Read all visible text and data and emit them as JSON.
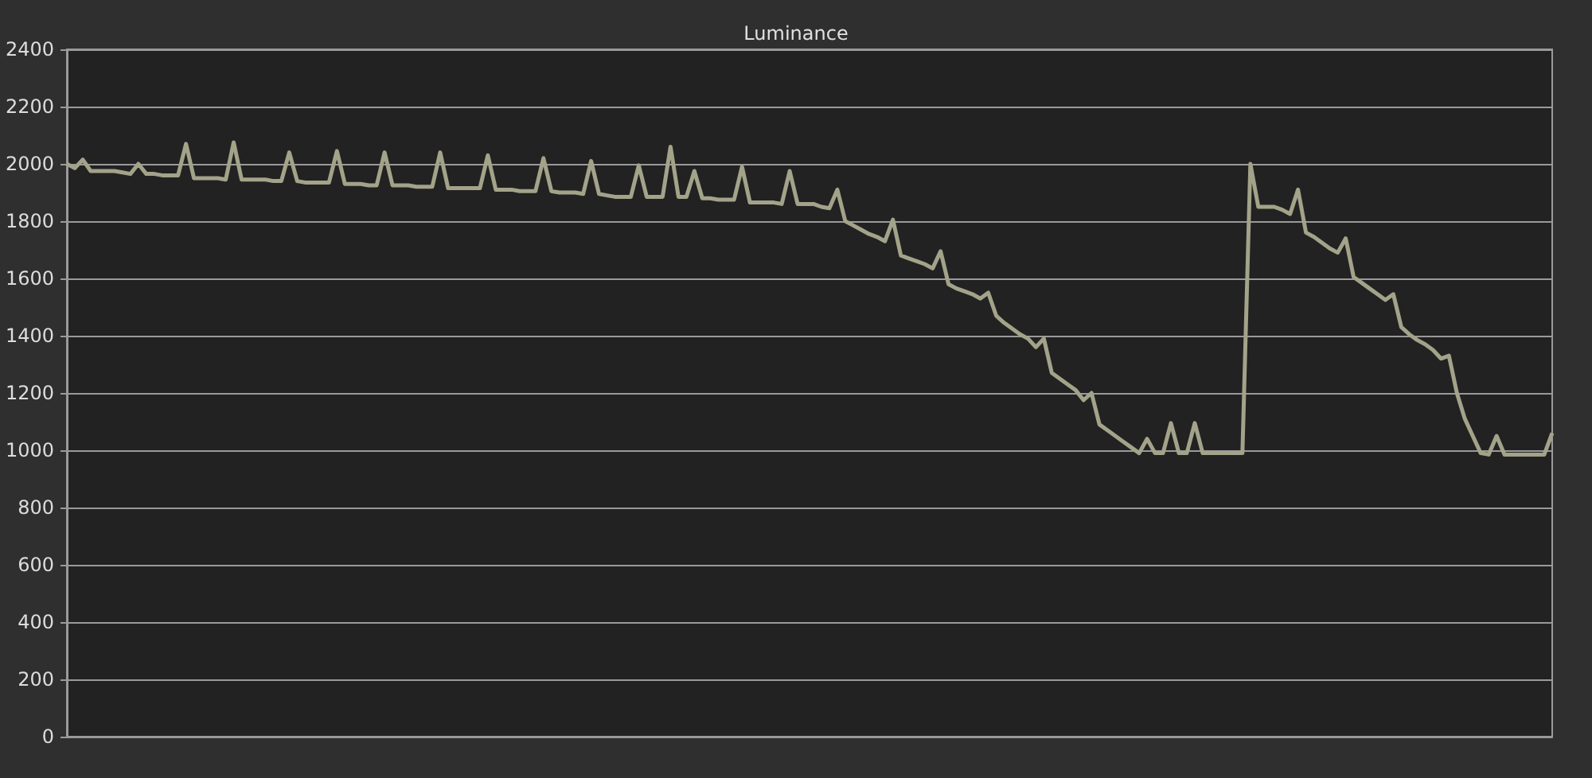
{
  "chart_data": {
    "type": "line",
    "title": "Luminance",
    "categories": [
      null,
      null,
      null,
      null,
      null,
      null,
      null,
      null,
      null,
      null,
      null,
      null,
      null,
      null,
      null,
      null,
      null,
      null,
      null,
      null,
      null,
      null,
      null,
      null,
      null,
      null,
      null,
      null,
      null,
      null,
      null,
      null,
      null,
      null,
      null,
      null,
      null,
      null,
      null,
      null,
      null,
      null,
      null,
      null,
      null,
      null,
      null,
      null,
      null,
      null,
      null,
      null,
      null,
      null,
      null,
      null,
      null,
      null,
      null,
      null,
      null,
      null,
      null,
      null,
      null,
      null,
      null,
      null,
      null,
      null,
      null,
      null,
      null,
      null,
      null,
      null,
      null,
      null,
      null,
      null,
      null,
      null,
      null,
      null,
      null,
      null,
      null,
      null,
      null,
      null,
      null,
      null,
      null,
      null,
      null,
      null,
      null,
      null,
      null,
      null,
      null,
      null,
      null,
      null,
      null,
      null,
      null,
      null,
      null,
      null,
      null,
      null,
      null,
      null,
      null,
      null,
      null,
      null,
      null,
      null,
      null,
      null,
      null,
      null,
      null,
      null,
      null,
      null,
      null,
      null,
      null,
      null,
      null,
      null,
      null,
      null,
      null,
      null,
      null,
      null,
      null,
      null,
      null,
      null,
      null,
      null,
      null,
      null,
      null,
      null,
      null,
      null,
      null,
      null,
      null,
      null,
      null,
      null,
      null,
      null,
      null,
      null,
      null,
      null,
      null,
      null,
      null,
      null,
      null,
      null,
      null,
      null,
      null,
      null,
      null,
      null,
      null,
      null,
      null,
      null,
      null,
      null,
      null,
      null,
      null,
      null,
      null,
      null
    ],
    "series": [
      {
        "color": "#a3a38a",
        "values": [
          2000,
          1985,
          2015,
          1975,
          1975,
          1975,
          1975,
          1970,
          1965,
          2000,
          1965,
          1965,
          1960,
          1960,
          1960,
          2070,
          1950,
          1950,
          1950,
          1950,
          1945,
          2075,
          1945,
          1945,
          1945,
          1945,
          1940,
          1940,
          2040,
          1940,
          1935,
          1935,
          1935,
          1935,
          2045,
          1930,
          1930,
          1930,
          1925,
          1925,
          2040,
          1925,
          1925,
          1925,
          1920,
          1920,
          1920,
          2040,
          1915,
          1915,
          1915,
          1915,
          1915,
          2030,
          1910,
          1910,
          1910,
          1905,
          1905,
          1905,
          2020,
          1905,
          1900,
          1900,
          1900,
          1895,
          2010,
          1895,
          1890,
          1885,
          1885,
          1885,
          1995,
          1885,
          1885,
          1885,
          2060,
          1885,
          1885,
          1975,
          1880,
          1880,
          1875,
          1875,
          1875,
          1990,
          1865,
          1865,
          1865,
          1865,
          1860,
          1975,
          1860,
          1860,
          1860,
          1850,
          1845,
          1910,
          1800,
          1785,
          1770,
          1755,
          1745,
          1730,
          1805,
          1680,
          1670,
          1660,
          1650,
          1635,
          1695,
          1580,
          1565,
          1555,
          1545,
          1530,
          1550,
          1470,
          1445,
          1425,
          1405,
          1390,
          1360,
          1390,
          1270,
          1250,
          1230,
          1210,
          1175,
          1200,
          1090,
          1070,
          1050,
          1030,
          1010,
          990,
          1040,
          990,
          990,
          1095,
          990,
          990,
          1095,
          990,
          990,
          990,
          990,
          990,
          990,
          2000,
          1850,
          1850,
          1850,
          1840,
          1825,
          1910,
          1760,
          1745,
          1725,
          1705,
          1690,
          1740,
          1605,
          1585,
          1565,
          1545,
          1525,
          1545,
          1430,
          1405,
          1385,
          1370,
          1350,
          1320,
          1330,
          1200,
          1110,
          1050,
          990,
          985,
          1050,
          985,
          985,
          985,
          985,
          985,
          985,
          1060
        ]
      }
    ],
    "ylim": [
      0,
      2400
    ],
    "yticks": [
      0,
      200,
      400,
      600,
      800,
      1000,
      1200,
      1400,
      1600,
      1800,
      2000,
      2200,
      2400
    ],
    "grid": "y",
    "tick_labels": "y",
    "line_style": "solid"
  }
}
